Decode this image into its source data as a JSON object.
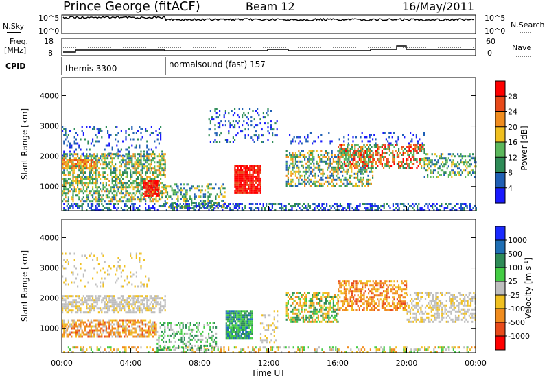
{
  "header": {
    "station": "Prince George (fitACF)",
    "beam": "Beam 12",
    "date": "16/May/2011"
  },
  "top_panels": {
    "nsky_label": "N.Sky",
    "nsky_ticks": [
      "10^5",
      "10^0"
    ],
    "nsearch_label": "N.Search",
    "nsearch_ticks": [
      "10^5",
      "10^0"
    ],
    "freq_label": "Freq.",
    "freq_unit": "[MHz]",
    "freq_ticks": [
      "18",
      "8"
    ],
    "nave_label": "Nave",
    "nave_ticks": [
      "60",
      "0"
    ],
    "cpid_label": "CPID",
    "cpid_segments": [
      {
        "name": "themis 3300",
        "start_hour": 0,
        "end_hour": 6
      },
      {
        "name": "normalsound (fast) 157",
        "start_hour": 6,
        "end_hour": 24
      }
    ]
  },
  "x_axis": {
    "label": "Time UT",
    "ticks": [
      "00:00",
      "04:00",
      "08:00",
      "12:00",
      "16:00",
      "20:00",
      "00:00"
    ]
  },
  "power_panel": {
    "ylabel": "Slant Range [km]",
    "yticks": [
      "1000",
      "2000",
      "3000",
      "4000"
    ],
    "colorbar_label": "Power [dB]",
    "colorbar_ticks": [
      "4",
      "8",
      "12",
      "16",
      "20",
      "24",
      "28"
    ],
    "colors": [
      "#1a1aff",
      "#1f5fb4",
      "#2e8b57",
      "#5cb85c",
      "#f0c020",
      "#f08c1e",
      "#e84a1a",
      "#ff0000"
    ]
  },
  "velocity_panel": {
    "ylabel": "Slant Range [km]",
    "yticks": [
      "1000",
      "2000",
      "3000",
      "4000"
    ],
    "colorbar_label": "Velocity [m s^-1]",
    "colorbar_ticks": [
      "1000",
      "500",
      "100",
      "25",
      "-25",
      "-100",
      "-500",
      "-1000"
    ],
    "colors": [
      "#1a2aff",
      "#1f6fb4",
      "#2e8b57",
      "#44cc44",
      "#bebebe",
      "#f0c020",
      "#f08c1e",
      "#e84a1a",
      "#ff0000"
    ]
  },
  "chart_data": [
    {
      "type": "heatmap",
      "title": "Power",
      "xlabel": "Time UT",
      "ylabel": "Slant Range [km]",
      "xlim": [
        0,
        24
      ],
      "ylim": [
        200,
        4600
      ],
      "colorbar": {
        "label": "Power [dB]",
        "range": [
          0,
          32
        ]
      },
      "regions": [
        {
          "t_start": 0,
          "t_end": 5.8,
          "range_low": 600,
          "range_high": 2000,
          "value": 18
        },
        {
          "t_start": 5,
          "t_end": 5.6,
          "range_low": 700,
          "range_high": 1100,
          "value": 28
        },
        {
          "t_start": 0,
          "t_end": 5,
          "range_low": 2000,
          "range_high": 3000,
          "value": 8
        },
        {
          "t_start": 10,
          "t_end": 11.5,
          "range_low": 800,
          "range_high": 1600,
          "value": 28
        },
        {
          "t_start": 13,
          "t_end": 18,
          "range_low": 1200,
          "range_high": 2200,
          "value": 16
        },
        {
          "t_start": 16,
          "t_end": 21,
          "range_low": 1700,
          "range_high": 2400,
          "value": 22
        },
        {
          "t_start": 22,
          "t_end": 24,
          "range_low": 1400,
          "range_high": 2100,
          "value": 14
        }
      ]
    },
    {
      "type": "heatmap",
      "title": "Velocity",
      "xlabel": "Time UT",
      "ylabel": "Slant Range [km]",
      "xlim": [
        0,
        24
      ],
      "ylim": [
        200,
        4600
      ],
      "colorbar": {
        "label": "Velocity [m s^-1]",
        "range": [
          -1000,
          1000
        ]
      },
      "regions": [
        {
          "t_start": 0,
          "t_end": 6,
          "range_low": 1500,
          "range_high": 2100,
          "value": 0
        },
        {
          "t_start": 0,
          "t_end": 5,
          "range_low": 700,
          "range_high": 1300,
          "value": -300
        },
        {
          "t_start": 9.5,
          "t_end": 11,
          "range_low": 600,
          "range_high": 1600,
          "value": 150
        },
        {
          "t_start": 13,
          "t_end": 20,
          "range_low": 1200,
          "range_high": 2600,
          "value": -200
        },
        {
          "t_start": 20,
          "t_end": 24,
          "range_low": 1200,
          "range_high": 2200,
          "value": 0
        }
      ]
    }
  ]
}
